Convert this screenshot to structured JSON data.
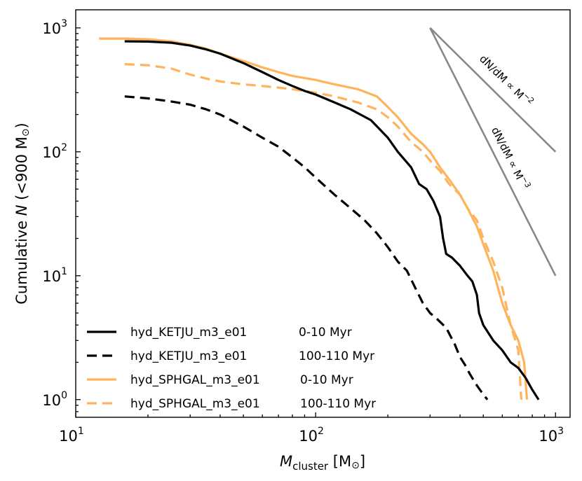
{
  "chart_data": {
    "type": "line",
    "title": "",
    "xlabel": {
      "italic": "M",
      "sub": "cluster",
      "unit_open": " [M",
      "unit_sym": "⊙",
      "unit_close": "]"
    },
    "ylabel": {
      "prefix": "Cumulative ",
      "italic": "N",
      "suffix": " (<900 M",
      "sym": "⊙",
      "close": ")"
    },
    "xscale": "log",
    "yscale": "log",
    "xlim": [
      10,
      1150
    ],
    "ylim": [
      0.72,
      1400
    ],
    "xticks": [
      {
        "value": 10,
        "base": "10",
        "exp": "1"
      },
      {
        "value": 100,
        "base": "10",
        "exp": "2"
      },
      {
        "value": 1000,
        "base": "10",
        "exp": "3"
      }
    ],
    "yticks": [
      {
        "value": 1,
        "base": "10",
        "exp": "0"
      },
      {
        "value": 10,
        "base": "10",
        "exp": "1"
      },
      {
        "value": 100,
        "base": "10",
        "exp": "2"
      },
      {
        "value": 1000,
        "base": "10",
        "exp": "3"
      }
    ],
    "grid": false,
    "legend_position": "lower-left",
    "series": [
      {
        "name": "hyd_KETJU_m3_e01",
        "period": "0-10 Myr",
        "color": "#000000",
        "dash": "solid",
        "x": [
          16,
          20,
          25,
          30,
          35,
          40,
          50,
          60,
          70,
          80,
          90,
          100,
          120,
          140,
          170,
          200,
          220,
          250,
          270,
          290,
          310,
          330,
          340,
          350,
          370,
          400,
          430,
          450,
          470,
          480,
          500,
          550,
          600,
          650,
          700,
          750,
          800,
          850
        ],
        "y": [
          780,
          775,
          760,
          720,
          670,
          620,
          520,
          440,
          380,
          340,
          310,
          290,
          250,
          220,
          180,
          130,
          100,
          75,
          55,
          50,
          40,
          30,
          20,
          15,
          14,
          12,
          10,
          9,
          7,
          5,
          4,
          3,
          2.5,
          2,
          1.8,
          1.5,
          1.2,
          1
        ]
      },
      {
        "name": "hyd_KETJU_m3_e01",
        "period": "100-110 Myr",
        "color": "#000000",
        "dash": "dashed",
        "x": [
          16,
          20,
          25,
          30,
          35,
          40,
          50,
          60,
          70,
          80,
          90,
          100,
          120,
          140,
          160,
          180,
          200,
          220,
          240,
          260,
          280,
          300,
          320,
          350,
          380,
          400,
          420,
          440,
          470,
          500,
          520
        ],
        "y": [
          280,
          270,
          255,
          240,
          220,
          200,
          160,
          130,
          110,
          90,
          75,
          62,
          45,
          35,
          28,
          22,
          17,
          13,
          11,
          8,
          6,
          5,
          4.5,
          3.8,
          2.8,
          2.2,
          1.9,
          1.6,
          1.3,
          1.1,
          1
        ]
      },
      {
        "name": "hyd_SPHGAL_m3_e01",
        "period": "0-10 Myr",
        "color": "#FFB35C",
        "dash": "solid",
        "x": [
          12.5,
          16,
          20,
          25,
          30,
          35,
          40,
          50,
          60,
          70,
          80,
          100,
          120,
          150,
          180,
          200,
          220,
          250,
          280,
          300,
          330,
          360,
          400,
          430,
          470,
          500,
          550,
          600,
          650,
          700,
          740,
          760
        ],
        "y": [
          820,
          820,
          810,
          780,
          730,
          680,
          620,
          540,
          480,
          440,
          410,
          380,
          350,
          320,
          280,
          230,
          190,
          140,
          115,
          100,
          75,
          60,
          45,
          35,
          25,
          18,
          11,
          6,
          4,
          3,
          2,
          1
        ]
      },
      {
        "name": "hyd_SPHGAL_m3_e01",
        "period": "100-110 Myr",
        "color": "#FFB35C",
        "dash": "dashed",
        "x": [
          16,
          20,
          25,
          30,
          35,
          40,
          50,
          60,
          70,
          80,
          100,
          120,
          150,
          180,
          200,
          220,
          250,
          280,
          300,
          330,
          360,
          400,
          430,
          470,
          500,
          550,
          600,
          650,
          700,
          720
        ],
        "y": [
          510,
          500,
          470,
          420,
          390,
          370,
          350,
          340,
          330,
          320,
          300,
          280,
          250,
          220,
          190,
          160,
          120,
          100,
          85,
          70,
          55,
          45,
          35,
          28,
          20,
          13,
          8,
          4,
          2.5,
          1
        ]
      }
    ],
    "reference_lines": [
      {
        "name": "slope-minus-2",
        "x": [
          300,
          1000
        ],
        "y": [
          1000,
          100
        ],
        "color": "#888888",
        "label": {
          "prefix": "dN/dM ∝ M",
          "exp": "−2"
        }
      },
      {
        "name": "slope-minus-3",
        "x": [
          300,
          1000
        ],
        "y": [
          1000,
          10
        ],
        "color": "#888888",
        "label": {
          "prefix": "dN/dM ∝ M",
          "exp": "−3"
        }
      }
    ]
  }
}
